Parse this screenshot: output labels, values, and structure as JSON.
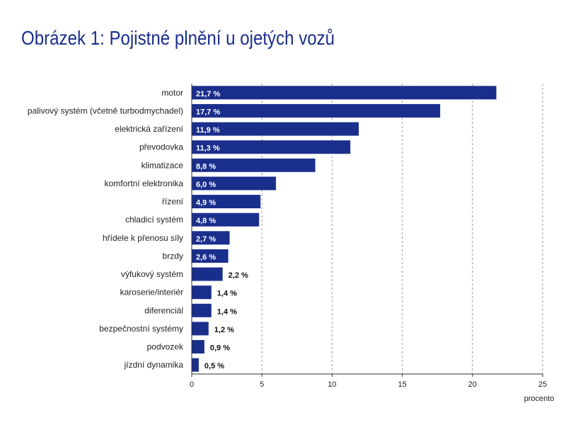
{
  "chart_data": {
    "type": "bar",
    "orientation": "horizontal",
    "title": "Obrázek 1: Pojistné plnění u ojetých vozů",
    "xlabel": "procento",
    "ylabel": "",
    "xlim": [
      0,
      25
    ],
    "x_ticks": [
      0,
      5,
      10,
      15,
      20,
      25
    ],
    "grid": true,
    "bar_color": "#1a2e8c",
    "categories": [
      "motor",
      "palivový systém (včetně turbodmychadel)",
      "elektrická zařízení",
      "převodovka",
      "klimatizace",
      "komfortní elektronika",
      "řízení",
      "chladicí systém",
      "hřídele k přenosu síly",
      "brzdy",
      "výfukový systém",
      "karoserie/interiér",
      "diferenciál",
      "bezpečnostní systémy",
      "podvozek",
      "jízdní dynamika"
    ],
    "values": [
      21.7,
      17.7,
      11.9,
      11.3,
      8.8,
      6.0,
      4.9,
      4.8,
      2.7,
      2.6,
      2.2,
      1.4,
      1.4,
      1.2,
      0.9,
      0.5
    ],
    "value_labels": [
      "21,7 %",
      "17,7 %",
      "11,9 %",
      "11,3 %",
      "8,8 %",
      "6,0 %",
      "4,9 %",
      "4,8 %",
      "2,7 %",
      "2,6 %",
      "2,2 %",
      "1,4 %",
      "1,4 %",
      "1,2 %",
      "0,9 %",
      "0,5 %"
    ]
  }
}
